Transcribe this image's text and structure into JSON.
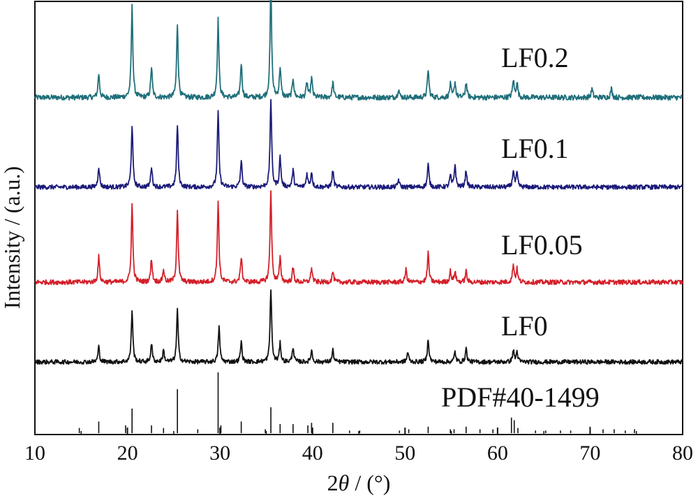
{
  "chart_data": {
    "type": "line",
    "title": "",
    "xlabel_prefix": "2",
    "xlabel_var": "θ",
    "xlabel_suffix": " / (°)",
    "ylabel": "Intensity / (a.u.)",
    "xlim": [
      10,
      80
    ],
    "x_ticks": [
      10,
      20,
      30,
      40,
      50,
      60,
      70,
      80
    ],
    "grid": false,
    "legend": "inline labels right of each trace",
    "series": [
      {
        "name": "LF0.2",
        "color": "#1f6f7a",
        "noise": 0.6,
        "peaks": [
          [
            16.9,
            11
          ],
          [
            20.5,
            42
          ],
          [
            22.6,
            14
          ],
          [
            25.4,
            34
          ],
          [
            29.8,
            36
          ],
          [
            32.3,
            16
          ],
          [
            35.5,
            52
          ],
          [
            36.5,
            14
          ],
          [
            37.9,
            9
          ],
          [
            39.4,
            7
          ],
          [
            39.9,
            9
          ],
          [
            42.2,
            7
          ],
          [
            49.3,
            4
          ],
          [
            52.5,
            13
          ],
          [
            54.9,
            6
          ],
          [
            55.4,
            7
          ],
          [
            56.6,
            7
          ],
          [
            61.7,
            8
          ],
          [
            62.1,
            7
          ],
          [
            70.2,
            4
          ],
          [
            72.3,
            4
          ]
        ]
      },
      {
        "name": "LF0.1",
        "color": "#1b1b7a",
        "noise": 0.6,
        "peaks": [
          [
            16.9,
            11
          ],
          [
            20.5,
            33
          ],
          [
            22.6,
            11
          ],
          [
            25.4,
            33
          ],
          [
            29.8,
            40
          ],
          [
            32.3,
            14
          ],
          [
            35.5,
            47
          ],
          [
            36.5,
            16
          ],
          [
            37.9,
            9
          ],
          [
            39.4,
            7
          ],
          [
            39.9,
            8
          ],
          [
            42.2,
            9
          ],
          [
            49.3,
            4
          ],
          [
            52.5,
            12
          ],
          [
            54.9,
            6
          ],
          [
            55.4,
            12
          ],
          [
            56.6,
            9
          ],
          [
            61.7,
            9
          ],
          [
            62.1,
            7
          ]
        ]
      },
      {
        "name": "LF0.05",
        "color": "#d4202a",
        "noise": 0.65,
        "peaks": [
          [
            16.9,
            14
          ],
          [
            20.5,
            43
          ],
          [
            22.6,
            13
          ],
          [
            23.9,
            7
          ],
          [
            25.4,
            40
          ],
          [
            29.8,
            45
          ],
          [
            32.3,
            14
          ],
          [
            35.5,
            51
          ],
          [
            36.5,
            13
          ],
          [
            37.9,
            8
          ],
          [
            39.9,
            8
          ],
          [
            42.2,
            6
          ],
          [
            50.1,
            7
          ],
          [
            52.5,
            16
          ],
          [
            54.9,
            6
          ],
          [
            55.4,
            6
          ],
          [
            56.6,
            6
          ],
          [
            61.7,
            10
          ],
          [
            62.1,
            7
          ]
        ]
      },
      {
        "name": "LF0",
        "color": "#111111",
        "noise": 0.65,
        "peaks": [
          [
            16.9,
            9
          ],
          [
            20.5,
            31
          ],
          [
            22.6,
            11
          ],
          [
            23.9,
            7
          ],
          [
            25.4,
            31
          ],
          [
            29.9,
            21
          ],
          [
            32.3,
            12
          ],
          [
            35.5,
            44
          ],
          [
            36.5,
            11
          ],
          [
            37.9,
            9
          ],
          [
            39.9,
            7
          ],
          [
            42.2,
            7
          ],
          [
            50.3,
            6
          ],
          [
            52.5,
            14
          ],
          [
            55.4,
            6
          ],
          [
            56.6,
            8
          ],
          [
            61.7,
            7
          ],
          [
            62.1,
            6
          ]
        ]
      },
      {
        "name": "PDF#40-1499",
        "color": "#111111",
        "type": "stick",
        "sticks": [
          [
            14.8,
            4
          ],
          [
            16.9,
            9
          ],
          [
            19.8,
            6
          ],
          [
            20.5,
            19
          ],
          [
            22.6,
            6
          ],
          [
            23.9,
            4
          ],
          [
            25.4,
            34
          ],
          [
            27.6,
            3
          ],
          [
            29.8,
            47
          ],
          [
            30.1,
            6
          ],
          [
            32.3,
            9
          ],
          [
            34.9,
            3
          ],
          [
            35.5,
            20
          ],
          [
            36.5,
            7
          ],
          [
            37.9,
            7
          ],
          [
            39.5,
            6
          ],
          [
            39.9,
            8
          ],
          [
            42.2,
            8
          ],
          [
            44.0,
            2
          ],
          [
            45.1,
            2
          ],
          [
            49.4,
            2
          ],
          [
            50.4,
            3
          ],
          [
            52.5,
            5
          ],
          [
            54.9,
            3
          ],
          [
            55.3,
            3
          ],
          [
            56.6,
            5
          ],
          [
            58.1,
            3
          ],
          [
            59.5,
            3
          ],
          [
            61.5,
            12
          ],
          [
            61.8,
            10
          ],
          [
            62.2,
            4
          ],
          [
            64.1,
            2
          ],
          [
            65.2,
            2
          ],
          [
            66.8,
            2
          ],
          [
            67.9,
            2
          ],
          [
            70.0,
            5
          ],
          [
            71.4,
            3
          ],
          [
            72.6,
            3
          ],
          [
            73.8,
            2
          ],
          [
            74.8,
            3
          ]
        ]
      }
    ]
  }
}
